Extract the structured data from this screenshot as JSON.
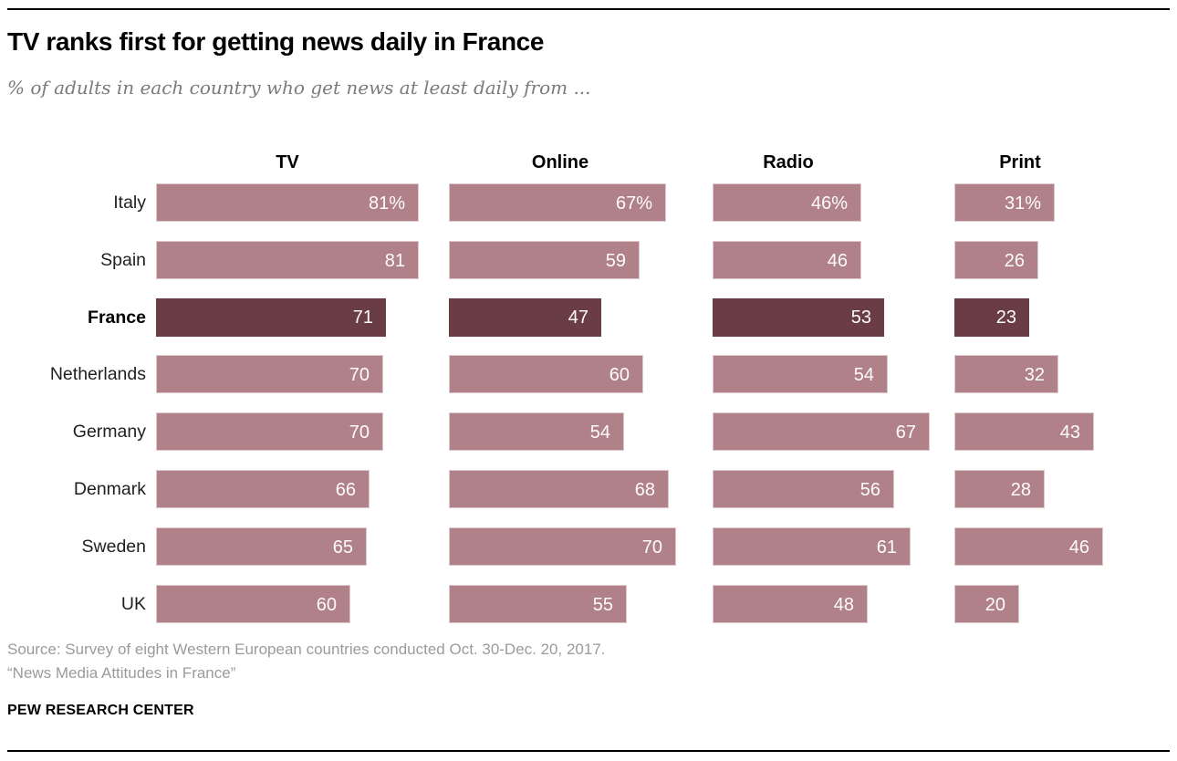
{
  "header": {
    "title": "TV ranks first for getting news daily in France",
    "subtitle": "% of adults in each country who get news at least daily from ..."
  },
  "footer": {
    "source_line1": "Source: Survey of eight Western European countries conducted Oct. 30-Dec. 20, 2017.",
    "source_line2": "“News Media Attitudes in France”",
    "brand": "PEW RESEARCH CENTER"
  },
  "chart_data": {
    "type": "bar",
    "orientation": "horizontal",
    "title": "TV ranks first for getting news daily in France",
    "subtitle": "% of adults in each country who get news at least daily from ...",
    "categories": [
      "Italy",
      "Spain",
      "France",
      "Netherlands",
      "Germany",
      "Denmark",
      "Sweden",
      "UK"
    ],
    "series": [
      {
        "name": "TV",
        "values": [
          81,
          81,
          71,
          70,
          70,
          66,
          65,
          60
        ]
      },
      {
        "name": "Online",
        "values": [
          67,
          59,
          47,
          60,
          54,
          68,
          70,
          55
        ]
      },
      {
        "name": "Radio",
        "values": [
          46,
          46,
          53,
          54,
          67,
          56,
          61,
          48
        ]
      },
      {
        "name": "Print",
        "values": [
          31,
          26,
          23,
          32,
          43,
          28,
          46,
          20
        ]
      }
    ],
    "highlight_category": "France",
    "first_row_value_suffix": "%",
    "value_labels": "inside-end",
    "xlim": [
      0,
      90
    ],
    "grid": false,
    "legend": false,
    "colors": {
      "bar": "#b1818a",
      "bar_border": "#ddc8cc",
      "highlight_bar": "#6a3d45",
      "value_label": "#fdfbfb"
    }
  }
}
